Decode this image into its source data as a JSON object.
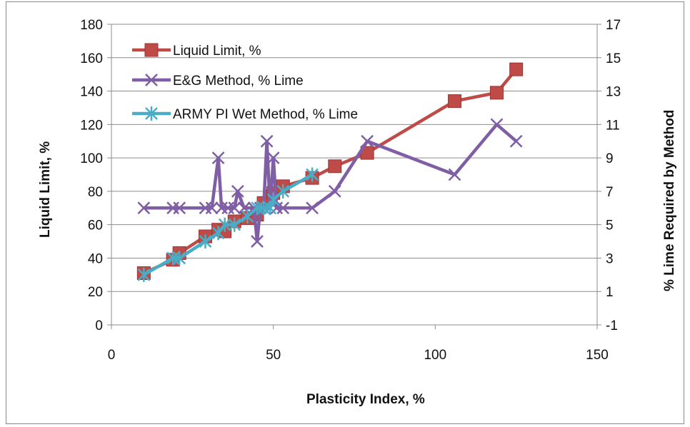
{
  "chart_data": {
    "type": "line",
    "xlabel": "Plasticity Index, %",
    "ylabel": "Liquid Limit, %",
    "y2label": "% Lime Required by Method",
    "xlim": [
      0,
      150
    ],
    "ylim": [
      0,
      180
    ],
    "y2lim": [
      -1,
      17
    ],
    "x_ticks": [
      0,
      50,
      100,
      150
    ],
    "y_ticks": [
      0,
      20,
      40,
      60,
      80,
      100,
      120,
      140,
      160,
      180
    ],
    "y2_ticks": [
      -1,
      1,
      3,
      5,
      7,
      9,
      11,
      13,
      15,
      17
    ],
    "grid": "horizontal",
    "legend_position": "top-left",
    "series": [
      {
        "name": "Liquid Limit, %",
        "axis": "left",
        "color": "#be4b48",
        "marker": "square",
        "x": [
          10,
          19,
          21,
          29,
          33,
          35,
          38,
          42,
          45,
          47,
          49,
          50,
          53,
          62,
          69,
          79,
          106,
          119,
          125
        ],
        "y": [
          31,
          39,
          43,
          53,
          57,
          56,
          62,
          64,
          66,
          73,
          77,
          79,
          83,
          88,
          95,
          103,
          134,
          139,
          153
        ]
      },
      {
        "name": "E&G Method, % Lime",
        "axis": "right",
        "color": "#7f5ea5",
        "marker": "x",
        "x": [
          10,
          19,
          21,
          29,
          31,
          33,
          34,
          36,
          38,
          39,
          41,
          44,
          45,
          46,
          47,
          48,
          49,
          50,
          51,
          53,
          62,
          69,
          79,
          106,
          119,
          125
        ],
        "y": [
          6,
          6,
          6,
          6,
          6,
          9,
          6,
          6,
          6,
          7,
          6,
          6,
          4,
          6,
          6,
          10,
          6,
          9,
          6,
          6,
          6,
          7,
          10,
          8,
          11,
          10
        ]
      },
      {
        "name": "ARMY PI Wet Method, % Lime",
        "axis": "right",
        "color": "#4bacc6",
        "marker": "asterisk",
        "x": [
          10,
          19,
          21,
          29,
          33,
          35,
          38,
          42,
          45,
          47,
          49,
          50,
          53,
          62
        ],
        "y": [
          2,
          3,
          3,
          4,
          4.5,
          5,
          5,
          5.5,
          6,
          6,
          6,
          6.5,
          7,
          8
        ]
      }
    ]
  }
}
